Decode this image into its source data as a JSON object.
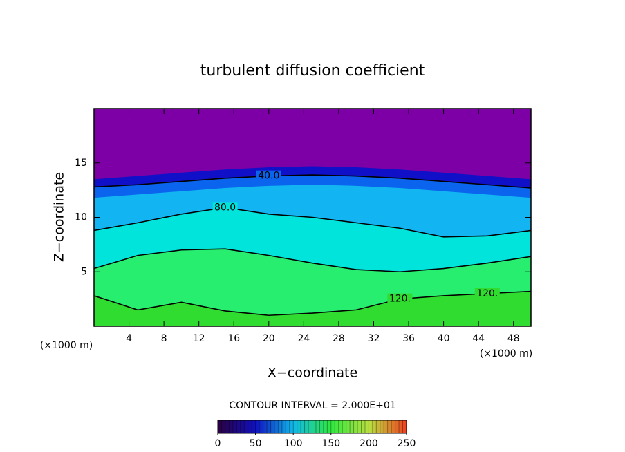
{
  "chart_data": {
    "type": "contour",
    "title": "turbulent diffusion coefficient",
    "x_label": "X−coordinate",
    "y_label": "Z−coordinate",
    "x_unit": "(×1000 m)",
    "contour_interval": "CONTOUR INTERVAL = 2.000E+01",
    "xlim": [
      0,
      50
    ],
    "ylim": [
      0,
      20
    ],
    "xticks": [
      4,
      8,
      12,
      16,
      20,
      24,
      28,
      32,
      36,
      40,
      44,
      48
    ],
    "yticks": [
      5,
      10,
      15
    ],
    "background": "#7d00a6",
    "x": [
      0,
      5,
      10,
      15,
      20,
      25,
      30,
      35,
      40,
      45,
      50
    ],
    "contours": [
      {
        "level": 10,
        "fill": "#1010c8",
        "line": false,
        "y": [
          13.5,
          13.8,
          14.1,
          14.4,
          14.6,
          14.7,
          14.6,
          14.4,
          14.1,
          13.8,
          13.5
        ]
      },
      {
        "level": 40,
        "label": "40.0",
        "fill": "#0a64ee",
        "line": true,
        "y": [
          12.8,
          13.0,
          13.3,
          13.6,
          13.8,
          13.9,
          13.8,
          13.6,
          13.3,
          13.0,
          12.7
        ]
      },
      {
        "level": 60,
        "fill": "#12b4f2",
        "line": false,
        "y": [
          11.8,
          12.1,
          12.4,
          12.7,
          12.9,
          13.0,
          12.9,
          12.7,
          12.4,
          12.1,
          11.8
        ]
      },
      {
        "level": 80,
        "label": "80.0",
        "fill": "#00e4dc",
        "line": true,
        "y": [
          8.8,
          9.5,
          10.3,
          10.9,
          10.3,
          10.0,
          9.5,
          9.0,
          8.2,
          8.3,
          8.8
        ]
      },
      {
        "level": 100,
        "fill": "#28ee70",
        "line": true,
        "y": [
          5.3,
          6.5,
          7.0,
          7.1,
          6.5,
          5.8,
          5.2,
          5.0,
          5.3,
          5.8,
          6.4
        ]
      },
      {
        "level": 120,
        "label": "120.",
        "fill": "#30dc30",
        "line": true,
        "y": [
          2.8,
          1.5,
          2.2,
          1.4,
          1.0,
          1.2,
          1.5,
          2.5,
          2.8,
          3.0,
          3.2
        ]
      }
    ],
    "colorbar": {
      "ticks": [
        0,
        50,
        100,
        150,
        200,
        250
      ],
      "colors": [
        "#2a0040",
        "#1010c0",
        "#10b8e8",
        "#30e840",
        "#b8e040",
        "#f04020"
      ]
    }
  }
}
